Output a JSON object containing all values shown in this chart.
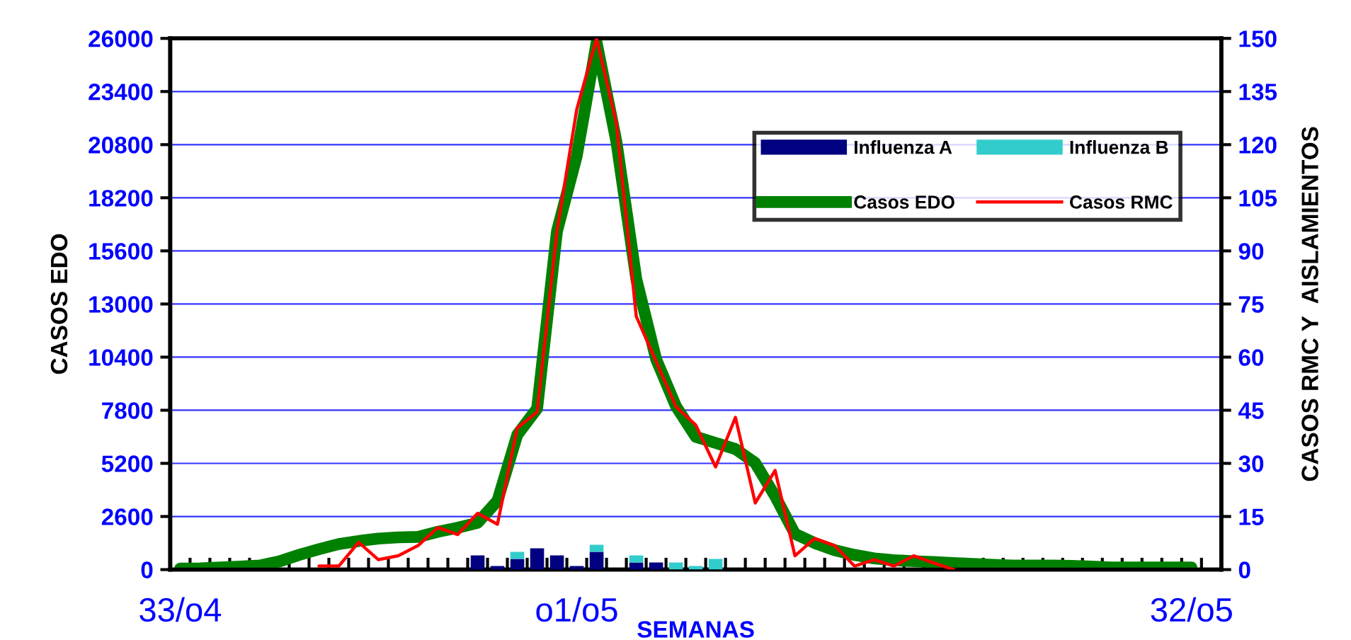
{
  "chart_data": {
    "type": "line",
    "xlabel": "SEMANAS",
    "ylabel": "CASOS EDO",
    "y2label": "CASOS RMC Y  AISLAMIENTOS",
    "categories": [
      "33/o4",
      null,
      null,
      null,
      null,
      null,
      null,
      null,
      null,
      null,
      null,
      null,
      null,
      null,
      null,
      null,
      null,
      null,
      null,
      null,
      "o1/o5",
      null,
      null,
      null,
      null,
      null,
      null,
      null,
      null,
      null,
      null,
      null,
      null,
      null,
      null,
      null,
      null,
      null,
      null,
      null,
      null,
      null,
      null,
      null,
      null,
      null,
      null,
      null,
      null,
      null,
      null,
      "32/o5",
      null
    ],
    "series": [
      {
        "name": "Influenza A",
        "type": "bar",
        "axis": "y2",
        "color": "#000080",
        "values": [
          null,
          null,
          null,
          null,
          null,
          null,
          null,
          null,
          null,
          null,
          null,
          null,
          null,
          null,
          null,
          4,
          1,
          3,
          6,
          4,
          1,
          5,
          null,
          2,
          2,
          null,
          null,
          null,
          null,
          null,
          null,
          null,
          null,
          null,
          null,
          null,
          null,
          null,
          null,
          null,
          null,
          null,
          null,
          null,
          null,
          null,
          null,
          null,
          null,
          null,
          null,
          null,
          null
        ]
      },
      {
        "name": "Influenza B",
        "type": "bar",
        "axis": "y2",
        "color": "#33cccc",
        "values": [
          null,
          null,
          null,
          null,
          null,
          null,
          null,
          null,
          null,
          null,
          null,
          null,
          null,
          null,
          null,
          null,
          null,
          2,
          null,
          null,
          null,
          2,
          null,
          2,
          null,
          2,
          1,
          3,
          null,
          null,
          null,
          null,
          null,
          null,
          null,
          null,
          null,
          null,
          null,
          null,
          null,
          null,
          null,
          null,
          null,
          null,
          null,
          null,
          null,
          null,
          null,
          null,
          null
        ]
      },
      {
        "name": "Casos EDO",
        "color": "#008000",
        "values": [
          50,
          60,
          100,
          150,
          200,
          400,
          720,
          1000,
          1250,
          1400,
          1520,
          1580,
          1600,
          1850,
          2050,
          2290,
          3370,
          6600,
          7880,
          16550,
          20250,
          25800,
          20940,
          14230,
          10300,
          8000,
          6500,
          6200,
          5900,
          5220,
          3600,
          1750,
          1300,
          950,
          720,
          550,
          460,
          410,
          370,
          320,
          280,
          230,
          200,
          200,
          200,
          180,
          150,
          100,
          100,
          100,
          100,
          100,
          null
        ]
      },
      {
        "name": "Casos RMC",
        "axis": "y2",
        "color": "#ff0000",
        "values": [
          null,
          null,
          null,
          null,
          null,
          null,
          null,
          1,
          1,
          7.7,
          2.8,
          3.9,
          6.8,
          11.9,
          9.9,
          15.9,
          12.8,
          40,
          44.5,
          95.5,
          130,
          150,
          126,
          71.5,
          58.8,
          46,
          40.8,
          29,
          43,
          18.8,
          28,
          3.9,
          8.8,
          6.8,
          1,
          2.8,
          1,
          3.9,
          1.9,
          0,
          null,
          null,
          null,
          null,
          null,
          null,
          null,
          null,
          null,
          null,
          null,
          null,
          null
        ]
      }
    ],
    "stacked": true,
    "ylim": [
      0,
      26000
    ],
    "yticks": [
      0,
      2600,
      5200,
      7800,
      10400,
      13000,
      15600,
      18200,
      20800,
      23400,
      26000
    ],
    "y2lim": [
      0,
      150
    ],
    "y2ticks": [
      0,
      15,
      30,
      45,
      60,
      75,
      90,
      105,
      120,
      135,
      150
    ],
    "grid": "y",
    "legend": "top right"
  }
}
